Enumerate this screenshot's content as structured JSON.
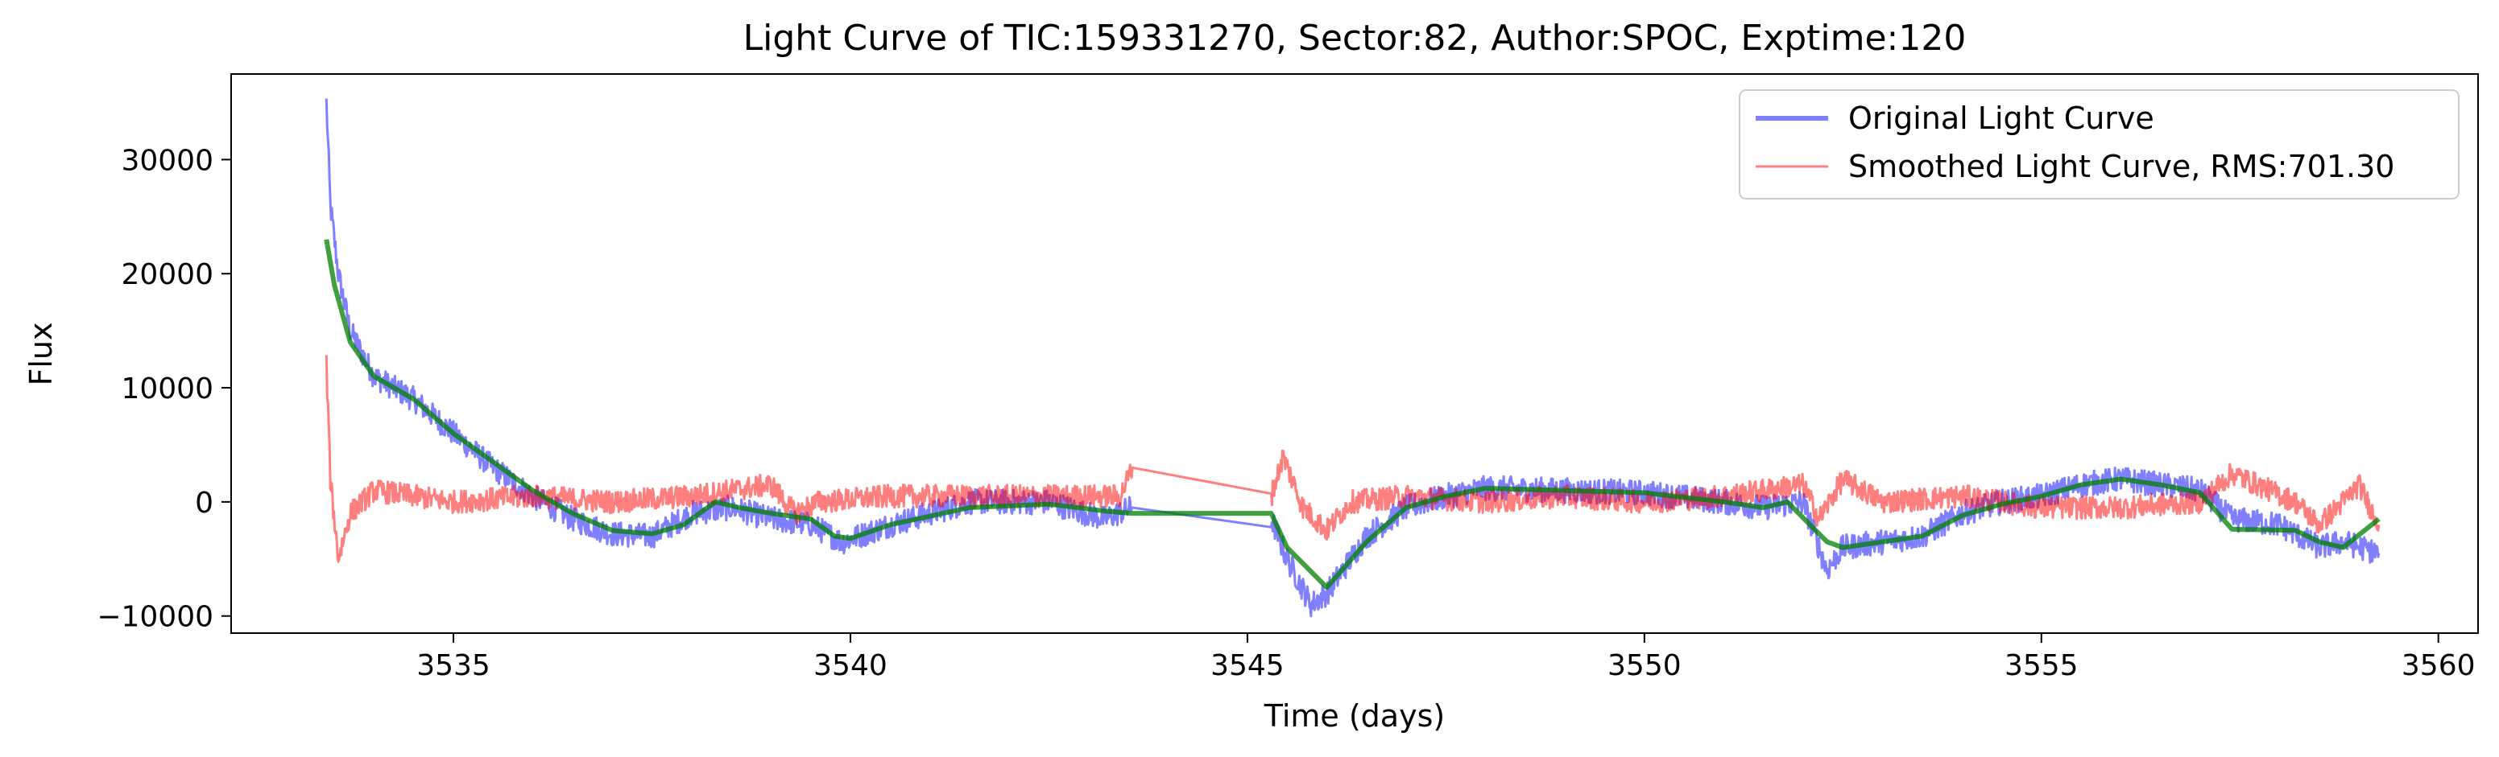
{
  "chart_data": {
    "type": "line",
    "title": "Light Curve of TIC:159331270, Sector:82, Author:SPOC, Exptime:120",
    "xlabel": "Time (days)",
    "ylabel": "Flux",
    "xlim": [
      3532.2,
      3560.5
    ],
    "ylim": [
      -11500,
      37500
    ],
    "xticks": [
      3535,
      3540,
      3545,
      3550,
      3555,
      3560
    ],
    "yticks": [
      -10000,
      0,
      10000,
      20000,
      30000
    ],
    "ytick_labels": [
      "−10000",
      "0",
      "10000",
      "20000",
      "30000"
    ],
    "grid": false,
    "legend_position": "top-right",
    "series": [
      {
        "name": "Original Light Curve",
        "color": "#0000ff",
        "opacity": 0.5,
        "style": "noisy",
        "noise": 1100,
        "points": [
          [
            3533.4,
            35000
          ],
          [
            3533.45,
            26000
          ],
          [
            3533.55,
            20000
          ],
          [
            3533.7,
            15000
          ],
          [
            3534.0,
            11000
          ],
          [
            3534.5,
            9000
          ],
          [
            3535.0,
            6000
          ],
          [
            3535.5,
            3000
          ],
          [
            3536.0,
            500
          ],
          [
            3536.5,
            -1500
          ],
          [
            3537.0,
            -2800
          ],
          [
            3537.5,
            -3000
          ],
          [
            3538.0,
            -1000
          ],
          [
            3538.5,
            -500
          ],
          [
            3539.0,
            -1500
          ],
          [
            3539.5,
            -2000
          ],
          [
            3539.9,
            -3500
          ],
          [
            3540.5,
            -2000
          ],
          [
            3541.0,
            -1000
          ],
          [
            3541.5,
            0
          ],
          [
            3542.5,
            0
          ],
          [
            3543.2,
            -1500
          ],
          [
            3543.55,
            -500
          ],
          [
            3545.3,
            -1500
          ],
          [
            3545.5,
            -5000
          ],
          [
            3545.8,
            -9000
          ],
          [
            3546.0,
            -8000
          ],
          [
            3546.5,
            -3000
          ],
          [
            3547.0,
            -500
          ],
          [
            3547.5,
            500
          ],
          [
            3548.0,
            1200
          ],
          [
            3549.0,
            1000
          ],
          [
            3550.0,
            800
          ],
          [
            3551.0,
            0
          ],
          [
            3551.5,
            -500
          ],
          [
            3552.0,
            0
          ],
          [
            3552.3,
            -6000
          ],
          [
            3552.5,
            -4000
          ],
          [
            3553.5,
            -3000
          ],
          [
            3554.0,
            -1000
          ],
          [
            3554.5,
            0
          ],
          [
            3555.0,
            500
          ],
          [
            3555.5,
            1500
          ],
          [
            3556.0,
            2000
          ],
          [
            3556.5,
            1500
          ],
          [
            3557.0,
            1000
          ],
          [
            3557.4,
            -1500
          ],
          [
            3558.0,
            -2000
          ],
          [
            3558.5,
            -4000
          ],
          [
            3558.8,
            -3500
          ],
          [
            3559.25,
            -4500
          ]
        ]
      },
      {
        "name": "Smoothed Light Curve, RMS:701.30",
        "color": "#ff0000",
        "opacity": 0.5,
        "style": "noisy",
        "noise": 1000,
        "points": [
          [
            3533.4,
            12000
          ],
          [
            3533.45,
            2000
          ],
          [
            3533.55,
            -5000
          ],
          [
            3533.7,
            -1000
          ],
          [
            3534.0,
            1000
          ],
          [
            3535.0,
            0
          ],
          [
            3536.0,
            500
          ],
          [
            3537.0,
            0
          ],
          [
            3538.0,
            500
          ],
          [
            3538.5,
            1000
          ],
          [
            3539.0,
            1500
          ],
          [
            3539.3,
            -1000
          ],
          [
            3539.6,
            0
          ],
          [
            3540.5,
            500
          ],
          [
            3541.5,
            500
          ],
          [
            3542.5,
            500
          ],
          [
            3543.4,
            500
          ],
          [
            3543.55,
            3000
          ],
          [
            3545.3,
            500
          ],
          [
            3545.45,
            4000
          ],
          [
            3545.7,
            -500
          ],
          [
            3546.0,
            -2500
          ],
          [
            3546.3,
            0
          ],
          [
            3547.0,
            500
          ],
          [
            3548.0,
            0
          ],
          [
            3549.0,
            500
          ],
          [
            3550.0,
            0
          ],
          [
            3551.0,
            500
          ],
          [
            3552.0,
            1500
          ],
          [
            3552.2,
            -1500
          ],
          [
            3552.5,
            2000
          ],
          [
            3553.0,
            0
          ],
          [
            3554.0,
            500
          ],
          [
            3555.0,
            -500
          ],
          [
            3556.0,
            -500
          ],
          [
            3557.0,
            0
          ],
          [
            3557.4,
            2500
          ],
          [
            3558.2,
            0
          ],
          [
            3558.5,
            -2000
          ],
          [
            3558.8,
            0
          ],
          [
            3559.0,
            1500
          ],
          [
            3559.25,
            -2000
          ]
        ]
      },
      {
        "name": "",
        "color": "#008000",
        "opacity": 0.75,
        "style": "smooth",
        "noise": 0,
        "points": [
          [
            3533.4,
            23000
          ],
          [
            3533.5,
            19000
          ],
          [
            3533.7,
            14000
          ],
          [
            3534.0,
            11000
          ],
          [
            3534.5,
            9000
          ],
          [
            3535.0,
            6000
          ],
          [
            3535.5,
            3500
          ],
          [
            3536.0,
            1000
          ],
          [
            3536.5,
            -1000
          ],
          [
            3537.0,
            -2500
          ],
          [
            3537.5,
            -2800
          ],
          [
            3537.9,
            -2000
          ],
          [
            3538.3,
            0
          ],
          [
            3538.6,
            -500
          ],
          [
            3539.0,
            -1000
          ],
          [
            3539.5,
            -1500
          ],
          [
            3539.8,
            -3000
          ],
          [
            3540.0,
            -3200
          ],
          [
            3540.5,
            -2000
          ],
          [
            3541.5,
            -500
          ],
          [
            3542.5,
            -200
          ],
          [
            3543.2,
            -800
          ],
          [
            3543.55,
            -1000
          ],
          [
            3545.3,
            -1000
          ],
          [
            3545.5,
            -4000
          ],
          [
            3546.0,
            -7500
          ],
          [
            3546.5,
            -3500
          ],
          [
            3547.0,
            -500
          ],
          [
            3547.5,
            500
          ],
          [
            3548.0,
            1200
          ],
          [
            3549.0,
            1000
          ],
          [
            3550.0,
            800
          ],
          [
            3551.0,
            0
          ],
          [
            3551.5,
            -500
          ],
          [
            3551.8,
            0
          ],
          [
            3552.3,
            -3500
          ],
          [
            3552.5,
            -4000
          ],
          [
            3553.5,
            -3000
          ],
          [
            3554.0,
            -1200
          ],
          [
            3554.5,
            -200
          ],
          [
            3555.0,
            500
          ],
          [
            3555.5,
            1500
          ],
          [
            3556.0,
            2000
          ],
          [
            3556.5,
            1500
          ],
          [
            3557.0,
            800
          ],
          [
            3557.4,
            -2400
          ],
          [
            3558.2,
            -2500
          ],
          [
            3558.5,
            -3500
          ],
          [
            3558.8,
            -4000
          ],
          [
            3559.25,
            -1500
          ]
        ]
      }
    ]
  }
}
